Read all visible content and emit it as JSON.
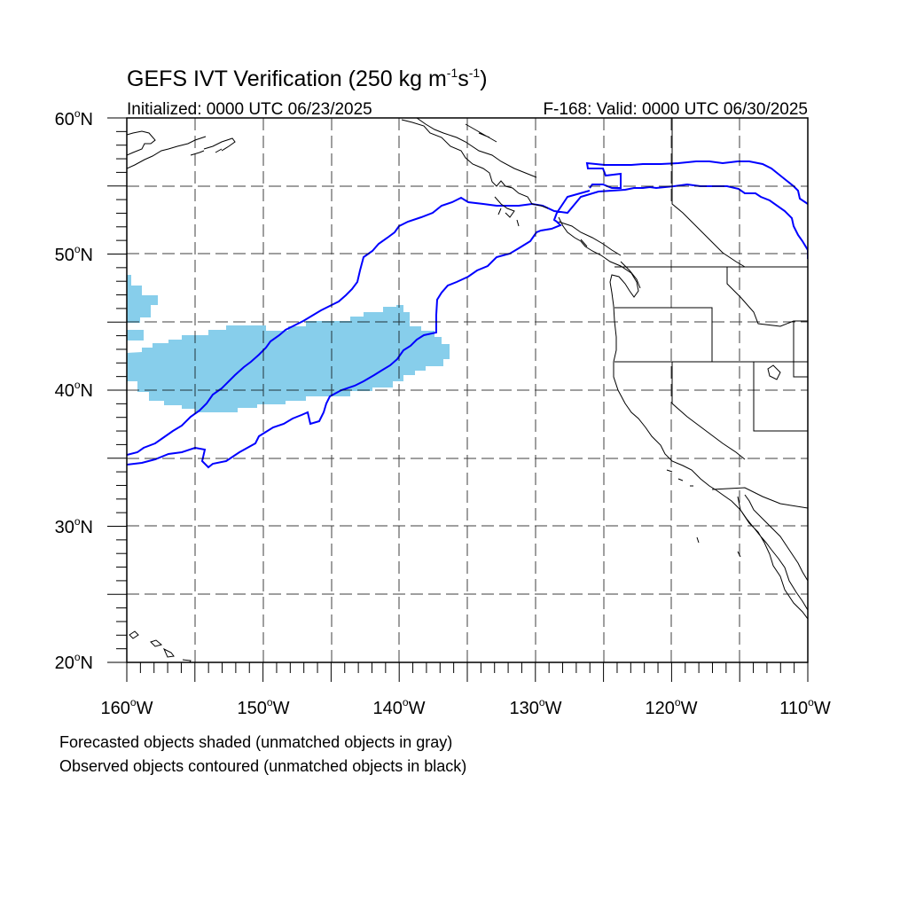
{
  "title": {
    "main": "GEFS IVT Verification (250 kg m",
    "exp1": "-1",
    "mid": "s",
    "exp2": "-1",
    "close": ")"
  },
  "init_label": "Initialized: 0000 UTC 06/23/2025",
  "valid_label": "F-168: Valid: 0000 UTC 06/30/2025",
  "notes": [
    "Forecasted objects shaded (unmatched objects in gray)",
    "Observed objects contoured (unmatched objects in black)"
  ],
  "map_extent": {
    "lon_min": -160,
    "lon_max": -110,
    "lat_min": 20,
    "lat_max": 60
  },
  "lat_ticks": [
    {
      "value": 60,
      "num": "60",
      "unit": "o",
      "hem": "N"
    },
    {
      "value": 50,
      "num": "50",
      "unit": "o",
      "hem": "N"
    },
    {
      "value": 40,
      "num": "40",
      "unit": "o",
      "hem": "N"
    },
    {
      "value": 30,
      "num": "30",
      "unit": "o",
      "hem": "N"
    },
    {
      "value": 20,
      "num": "20",
      "unit": "o",
      "hem": "N"
    }
  ],
  "lon_ticks": [
    {
      "value": -160,
      "num": "160",
      "unit": "o",
      "hem": "W"
    },
    {
      "value": -150,
      "num": "150",
      "unit": "o",
      "hem": "W"
    },
    {
      "value": -140,
      "num": "140",
      "unit": "o",
      "hem": "W"
    },
    {
      "value": -130,
      "num": "130",
      "unit": "o",
      "hem": "W"
    },
    {
      "value": -120,
      "num": "120",
      "unit": "o",
      "hem": "W"
    },
    {
      "value": -110,
      "num": "110",
      "unit": "o",
      "hem": "W"
    }
  ],
  "gridline_spacing_deg": 5,
  "colors": {
    "forecast_fill": "#87ceeb",
    "observed_contour": "#0000ff",
    "coastline": "#000000",
    "grid": "#000000"
  }
}
